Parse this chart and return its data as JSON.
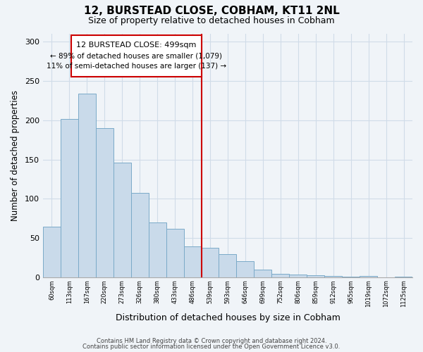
{
  "title": "12, BURSTEAD CLOSE, COBHAM, KT11 2NL",
  "subtitle": "Size of property relative to detached houses in Cobham",
  "xlabel": "Distribution of detached houses by size in Cobham",
  "ylabel": "Number of detached properties",
  "bar_labels": [
    "60sqm",
    "113sqm",
    "167sqm",
    "220sqm",
    "273sqm",
    "326sqm",
    "380sqm",
    "433sqm",
    "486sqm",
    "539sqm",
    "593sqm",
    "646sqm",
    "699sqm",
    "752sqm",
    "806sqm",
    "859sqm",
    "912sqm",
    "965sqm",
    "1019sqm",
    "1072sqm",
    "1125sqm"
  ],
  "bar_values": [
    65,
    201,
    234,
    190,
    146,
    108,
    70,
    62,
    40,
    38,
    30,
    21,
    10,
    5,
    4,
    3,
    2,
    1,
    2,
    0,
    1
  ],
  "bar_color": "#c9daea",
  "bar_edge_color": "#7aaac8",
  "vline_index": 8,
  "vline_color": "#cc0000",
  "annotation_title": "12 BURSTEAD CLOSE: 499sqm",
  "annotation_line1": "← 89% of detached houses are smaller (1,079)",
  "annotation_line2": "11% of semi-detached houses are larger (137) →",
  "footnote1": "Contains HM Land Registry data © Crown copyright and database right 2024.",
  "footnote2": "Contains public sector information licensed under the Open Government Licence v3.0.",
  "ylim": [
    0,
    310
  ],
  "yticks": [
    0,
    50,
    100,
    150,
    200,
    250,
    300
  ],
  "background_color": "#f0f4f8",
  "grid_color": "#d0dce8"
}
